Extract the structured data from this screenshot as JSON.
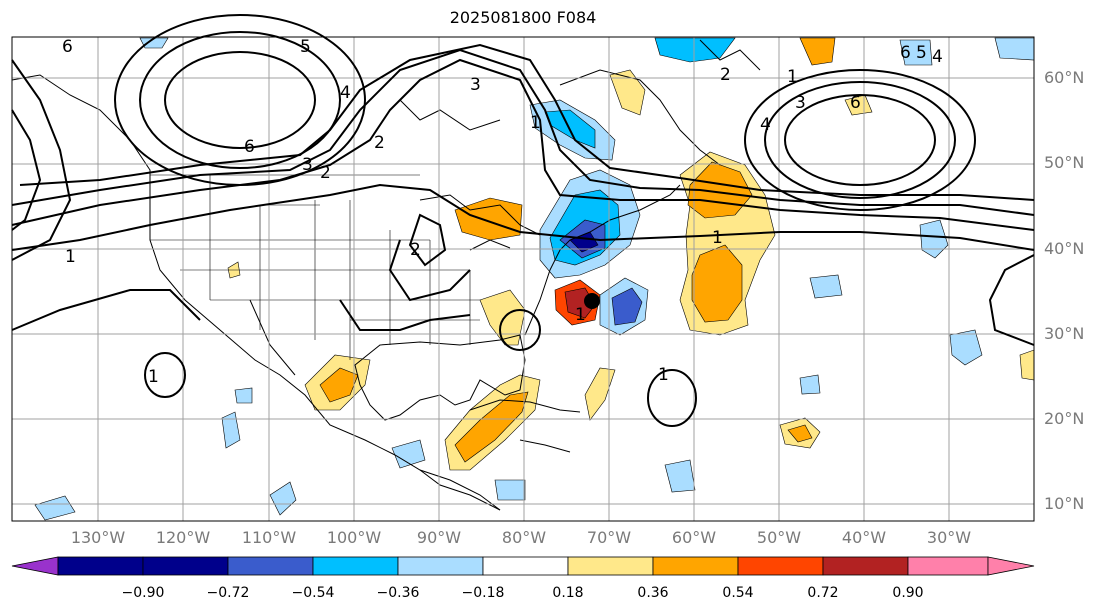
{
  "title": "2025081800 F084",
  "lat_labels": [
    "60°N",
    "50°N",
    "40°N",
    "30°N",
    "20°N",
    "10°N"
  ],
  "lon_labels": [
    "130°W",
    "120°W",
    "110°W",
    "100°W",
    "90°W",
    "80°W",
    "70°W",
    "60°W",
    "50°W",
    "40°W",
    "30°W"
  ],
  "colorbar": {
    "colors": [
      "#9932cc",
      "#00008b",
      "#3a5ccc",
      "#00bfff",
      "#aaddff",
      "#ffffff",
      "#ffe88a",
      "#ffa500",
      "#ff4500",
      "#b22222",
      "#ff80aa"
    ],
    "labels": [
      "−0.90",
      "−0.72",
      "−0.54",
      "−0.36",
      "−0.18",
      "0.18",
      "0.36",
      "0.54",
      "0.72",
      "0.90"
    ]
  },
  "contour_labels": [
    "6",
    "5",
    "4",
    "3",
    "2",
    "1",
    "6",
    "3",
    "2",
    "2",
    "1",
    "1",
    "1",
    "6",
    "5",
    "4",
    "3",
    "2",
    "1",
    "4",
    "6",
    "1",
    "1"
  ]
}
